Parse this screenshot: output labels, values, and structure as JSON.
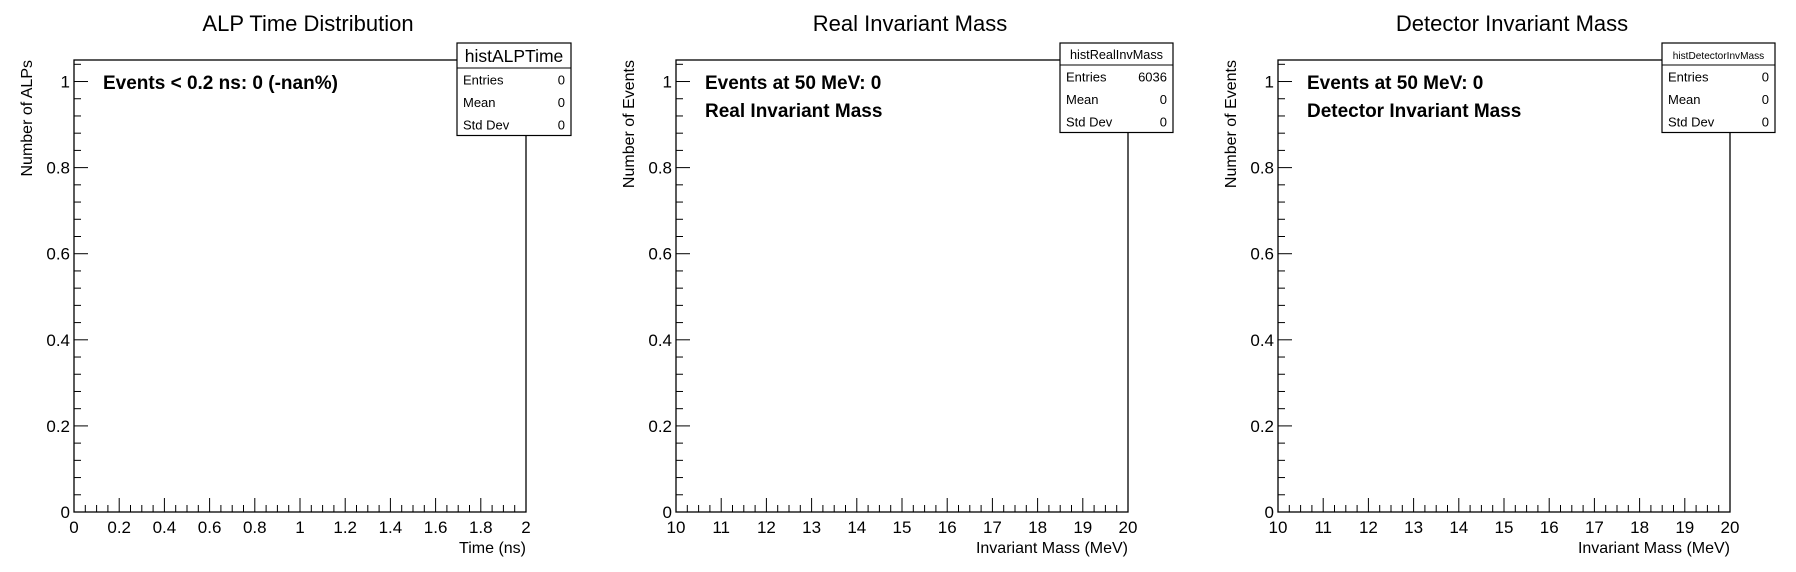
{
  "chart_data": [
    {
      "type": "bar",
      "title": "ALP Time Distribution",
      "xlabel": "Time (ns)",
      "ylabel": "Number of ALPs",
      "xlim": [
        0,
        2
      ],
      "ylim": [
        0,
        1.05
      ],
      "x_ticks": [
        "0",
        "0.2",
        "0.4",
        "0.6",
        "0.8",
        "1",
        "1.2",
        "1.4",
        "1.6",
        "1.8",
        "2"
      ],
      "y_ticks": [
        "0",
        "0.2",
        "0.4",
        "0.6",
        "0.8",
        "1"
      ],
      "series": [],
      "annotations": [
        "Events < 0.2 ns: 0 (-nan%)"
      ],
      "stats_box": {
        "name": "histALPTime",
        "rows": [
          {
            "label": "Entries",
            "value": "0"
          },
          {
            "label": "Mean",
            "value": "0"
          },
          {
            "label": "Std Dev",
            "value": "0"
          }
        ]
      }
    },
    {
      "type": "bar",
      "title": "Real Invariant Mass",
      "xlabel": "Invariant Mass (MeV)",
      "ylabel": "Number of Events",
      "xlim": [
        10,
        20
      ],
      "ylim": [
        0,
        1.05
      ],
      "x_ticks": [
        "10",
        "11",
        "12",
        "13",
        "14",
        "15",
        "16",
        "17",
        "18",
        "19",
        "20"
      ],
      "y_ticks": [
        "0",
        "0.2",
        "0.4",
        "0.6",
        "0.8",
        "1"
      ],
      "series": [],
      "annotations": [
        "Events at 50 MeV: 0",
        "Real Invariant Mass"
      ],
      "stats_box": {
        "name": "histRealInvMass",
        "rows": [
          {
            "label": "Entries",
            "value": "6036"
          },
          {
            "label": "Mean",
            "value": "0"
          },
          {
            "label": "Std Dev",
            "value": "0"
          }
        ]
      }
    },
    {
      "type": "bar",
      "title": "Detector Invariant Mass",
      "xlabel": "Invariant Mass (MeV)",
      "ylabel": "Number of Events",
      "xlim": [
        10,
        20
      ],
      "ylim": [
        0,
        1.05
      ],
      "x_ticks": [
        "10",
        "11",
        "12",
        "13",
        "14",
        "15",
        "16",
        "17",
        "18",
        "19",
        "20"
      ],
      "y_ticks": [
        "0",
        "0.2",
        "0.4",
        "0.6",
        "0.8",
        "1"
      ],
      "series": [],
      "annotations": [
        "Events at 50 MeV: 0",
        "Detector Invariant Mass"
      ],
      "stats_box": {
        "name": "histDetectorInvMass",
        "rows": [
          {
            "label": "Entries",
            "value": "0"
          },
          {
            "label": "Mean",
            "value": "0"
          },
          {
            "label": "Std Dev",
            "value": "0"
          }
        ]
      }
    }
  ]
}
